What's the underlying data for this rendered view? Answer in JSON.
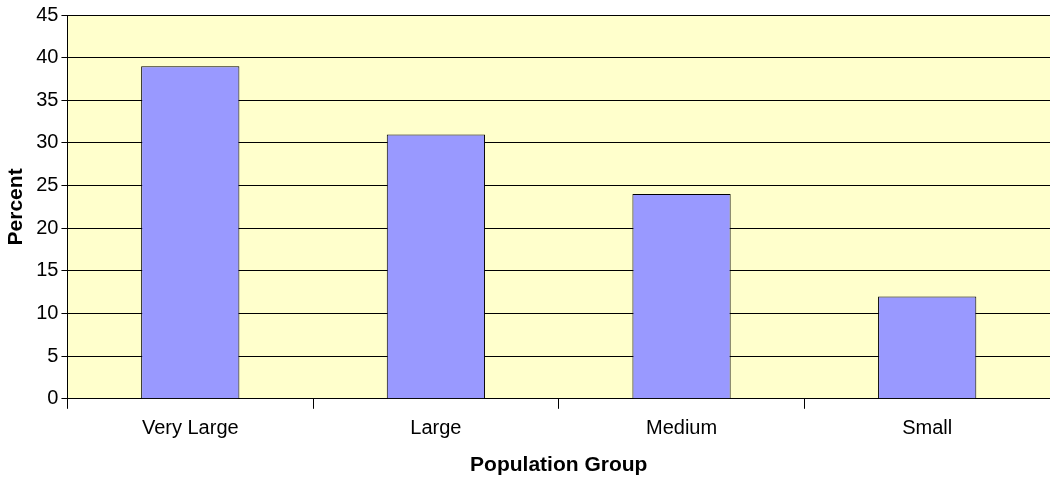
{
  "chart_data": {
    "type": "bar",
    "xlabel": "Population Group",
    "ylabel": "Percent",
    "categories": [
      "Very Large",
      "Large",
      "Medium",
      "Small"
    ],
    "values": [
      39,
      31,
      24,
      12
    ],
    "color": "#9999ff",
    "ylim": [
      0,
      45
    ],
    "yticks": [
      0,
      5,
      10,
      15,
      20,
      25,
      30,
      35,
      40,
      45
    ],
    "grid": "y",
    "legend": false
  }
}
